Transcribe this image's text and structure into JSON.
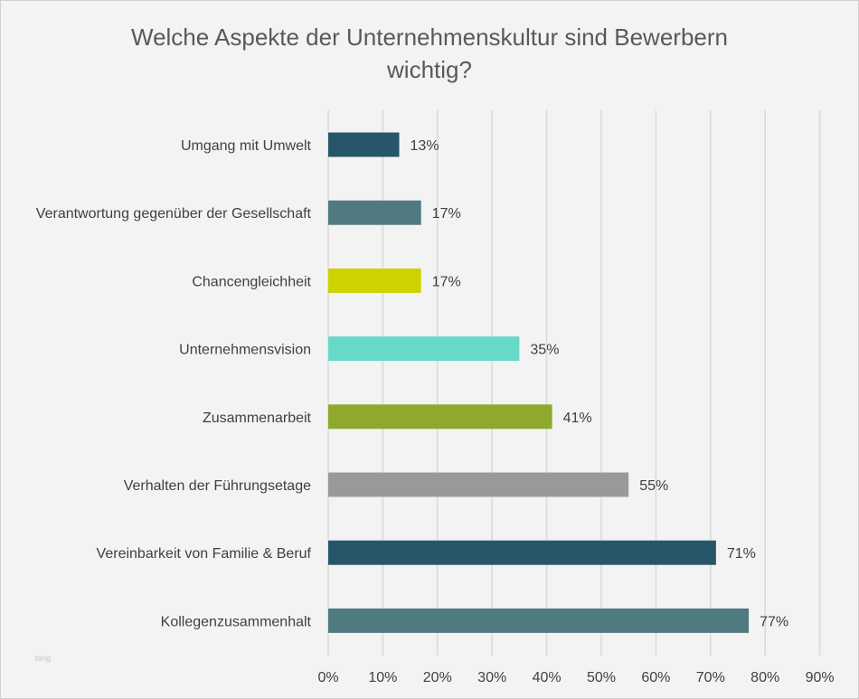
{
  "chart_data": {
    "type": "bar",
    "orientation": "horizontal",
    "title_lines": [
      "Welche Aspekte der Unternehmenskultur  sind Bewerbern",
      "wichtig?"
    ],
    "categories": [
      "Umgang mit Umwelt",
      "Verantwortung gegenüber der Gesellschaft",
      "Chancengleichheit",
      "Unternehmensvision",
      "Zusammenarbeit",
      "Verhalten der Führungsetage",
      "Vereinbarkeit von Familie & Beruf",
      "Kollegenzusammenhalt"
    ],
    "values": [
      13,
      17,
      17,
      35,
      41,
      55,
      71,
      77
    ],
    "value_labels": [
      "13%",
      "17%",
      "17%",
      "35%",
      "41%",
      "55%",
      "71%",
      "77%"
    ],
    "bar_colors": [
      "#27566b",
      "#4f7a80",
      "#cdd301",
      "#68d9c9",
      "#8ea92e",
      "#999999",
      "#27566b",
      "#4f7a80"
    ],
    "x_ticks": [
      "0%",
      "10%",
      "20%",
      "30%",
      "40%",
      "50%",
      "60%",
      "70%",
      "80%",
      "90%"
    ],
    "xlim": [
      0,
      90
    ],
    "grid": true,
    "xlabel": "",
    "ylabel": ""
  },
  "watermark": "bing"
}
